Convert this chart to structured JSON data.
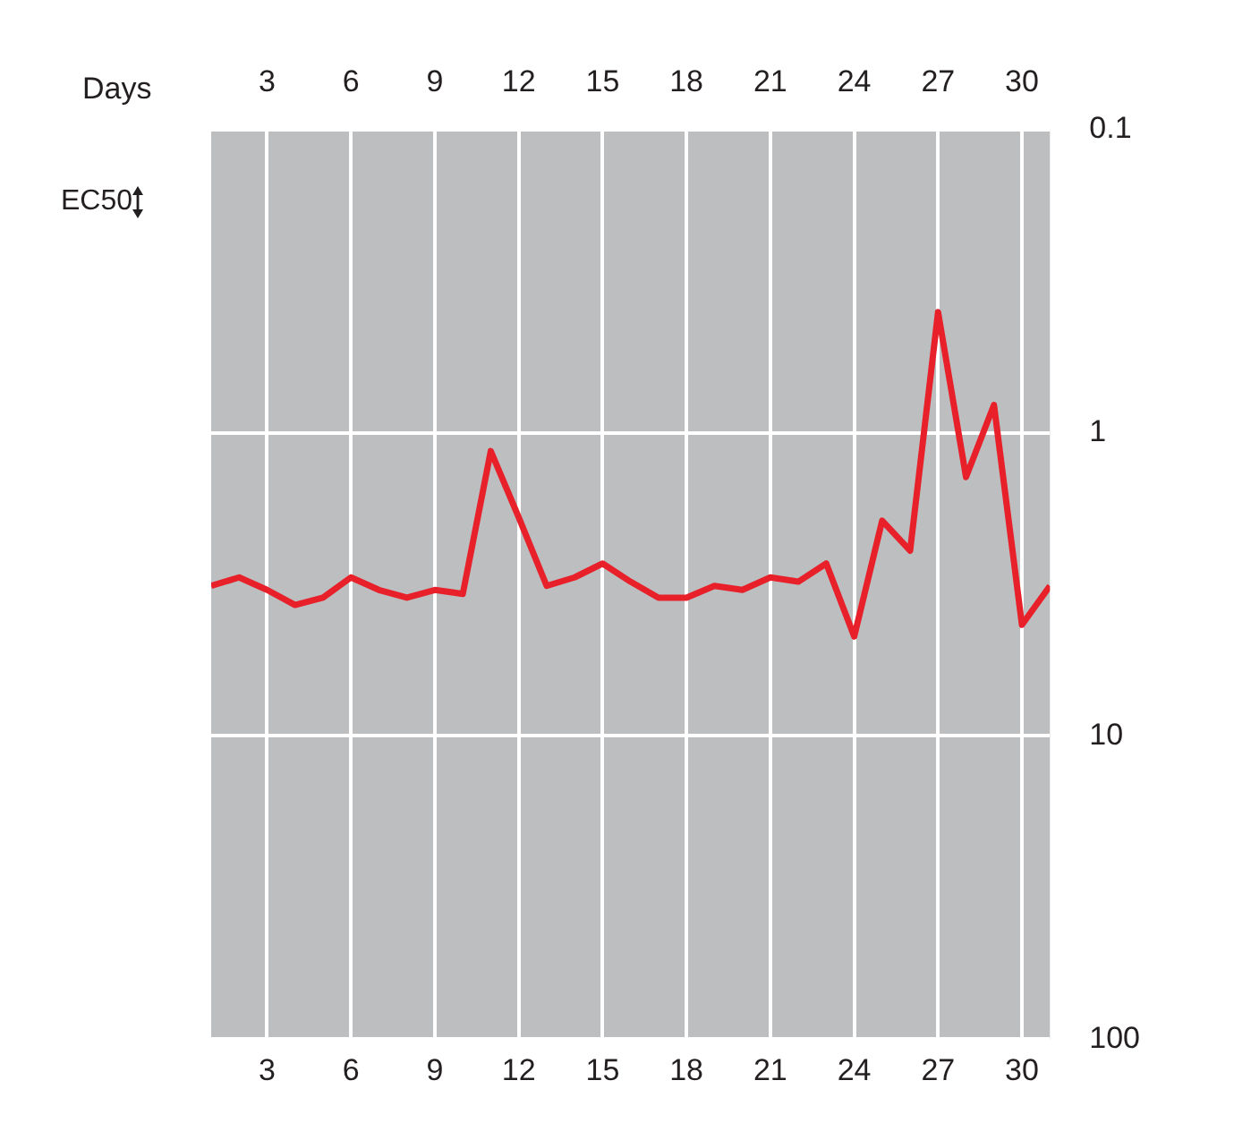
{
  "chart_data": {
    "type": "line",
    "xlabel": null,
    "x2label": "Days",
    "ylabel": "EC50",
    "x": [
      1,
      2,
      3,
      4,
      5,
      6,
      7,
      8,
      9,
      10,
      11,
      12,
      13,
      14,
      15,
      16,
      17,
      18,
      19,
      20,
      21,
      22,
      23,
      24,
      25,
      26,
      27,
      28,
      29,
      30,
      31
    ],
    "series": [
      {
        "color": "#e8202a",
        "values": [
          3.2,
          3.0,
          3.3,
          3.7,
          3.5,
          3.0,
          3.3,
          3.5,
          3.3,
          3.4,
          1.15,
          1.9,
          3.2,
          3.0,
          2.7,
          3.1,
          3.5,
          3.5,
          3.2,
          3.3,
          3.0,
          3.1,
          2.7,
          4.7,
          1.95,
          2.45,
          0.4,
          1.4,
          0.81,
          4.3,
          3.2
        ]
      }
    ],
    "xlim": [
      1,
      31
    ],
    "xticks": [
      3,
      6,
      9,
      12,
      15,
      18,
      21,
      24,
      27,
      30
    ],
    "x2lim": [
      1,
      31
    ],
    "x2ticks": [
      3,
      6,
      9,
      12,
      15,
      18,
      21,
      24,
      27,
      30
    ],
    "ylim": [
      100,
      0.1
    ],
    "yticks": [
      0.1,
      1,
      10,
      100
    ],
    "log": "y",
    "grid": true,
    "legend": false,
    "marker": "none",
    "line_style": "solid"
  }
}
